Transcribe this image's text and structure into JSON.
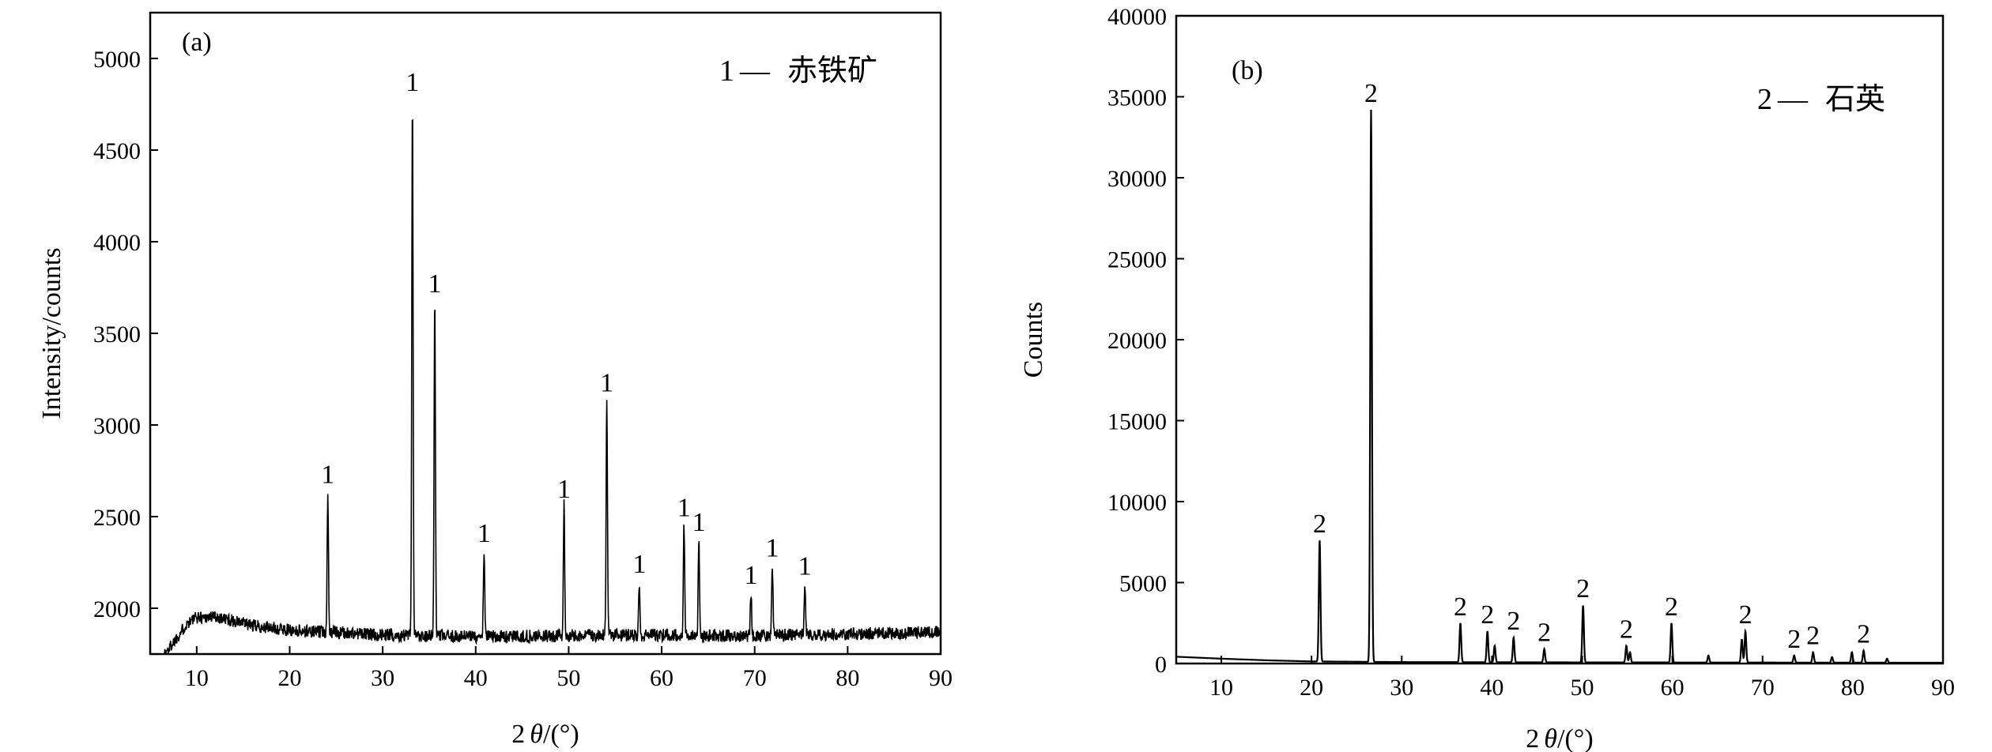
{
  "chart_data": [
    {
      "type": "line",
      "panel_label": "(a)",
      "xlabel_base": "2",
      "xlabel_theta": "θ",
      "xlabel_unit": "/(°)",
      "ylabel": "Intensity/counts",
      "xlim": [
        5,
        90
      ],
      "ylim": [
        1750,
        5250
      ],
      "xticks": [
        10,
        20,
        30,
        40,
        50,
        60,
        70,
        80,
        90
      ],
      "yticks": [
        2000,
        2500,
        3000,
        3500,
        4000,
        4500,
        5000
      ],
      "legend": {
        "marker": "1",
        "dash": "—",
        "name": "赤铁矿",
        "position": "top-right"
      },
      "baseline": {
        "points": [
          [
            6.5,
            1750
          ],
          [
            7,
            1780
          ],
          [
            8,
            1850
          ],
          [
            9,
            1920
          ],
          [
            10,
            1950
          ],
          [
            12,
            1955
          ],
          [
            14,
            1930
          ],
          [
            16,
            1905
          ],
          [
            20,
            1880
          ],
          [
            30,
            1855
          ],
          [
            40,
            1845
          ],
          [
            50,
            1850
          ],
          [
            60,
            1855
          ],
          [
            70,
            1850
          ],
          [
            80,
            1860
          ],
          [
            90,
            1870
          ]
        ],
        "noise": 35
      },
      "series": [
        {
          "peaks": [
            {
              "x": 24.1,
              "y": 2640,
              "label": "1"
            },
            {
              "x": 33.2,
              "y": 4780,
              "label": "1"
            },
            {
              "x": 35.6,
              "y": 3680,
              "label": "1"
            },
            {
              "x": 40.9,
              "y": 2320,
              "label": "1"
            },
            {
              "x": 49.5,
              "y": 2560,
              "label": "1"
            },
            {
              "x": 54.1,
              "y": 3140,
              "label": "1"
            },
            {
              "x": 57.6,
              "y": 2150,
              "label": "1"
            },
            {
              "x": 62.4,
              "y": 2460,
              "label": "1"
            },
            {
              "x": 64.0,
              "y": 2380,
              "label": "1"
            },
            {
              "x": 69.6,
              "y": 2090,
              "label": "1"
            },
            {
              "x": 71.9,
              "y": 2240,
              "label": "1"
            },
            {
              "x": 75.4,
              "y": 2140,
              "label": "1"
            }
          ]
        }
      ]
    },
    {
      "type": "line",
      "panel_label": "(b)",
      "xlabel_base": "2",
      "xlabel_theta": "θ",
      "xlabel_unit": "/(°)",
      "ylabel": "Counts",
      "xlim": [
        5,
        90
      ],
      "ylim": [
        0,
        40000
      ],
      "xticks": [
        10,
        20,
        30,
        40,
        50,
        60,
        70,
        80,
        90
      ],
      "yticks": [
        0,
        5000,
        10000,
        15000,
        20000,
        25000,
        30000,
        35000,
        40000
      ],
      "legend": {
        "marker": "2",
        "dash": "—",
        "name": "石英",
        "position": "top-right"
      },
      "baseline": {
        "points": [
          [
            5,
            420
          ],
          [
            10,
            300
          ],
          [
            15,
            200
          ],
          [
            20,
            130
          ],
          [
            30,
            90
          ],
          [
            50,
            70
          ],
          [
            70,
            60
          ],
          [
            90,
            50
          ]
        ],
        "noise": 0
      },
      "series": [
        {
          "peaks": [
            {
              "x": 20.9,
              "y": 7600,
              "label": "2"
            },
            {
              "x": 26.6,
              "y": 34200,
              "label": "2"
            },
            {
              "x": 36.5,
              "y": 2500,
              "label": "2"
            },
            {
              "x": 39.5,
              "y": 2000,
              "label": "2"
            },
            {
              "x": 40.3,
              "y": 1100,
              "label": ""
            },
            {
              "x": 42.4,
              "y": 1600,
              "label": "2"
            },
            {
              "x": 45.8,
              "y": 900,
              "label": "2"
            },
            {
              "x": 50.1,
              "y": 3600,
              "label": "2"
            },
            {
              "x": 54.9,
              "y": 1100,
              "label": "2"
            },
            {
              "x": 55.3,
              "y": 700,
              "label": ""
            },
            {
              "x": 59.9,
              "y": 2500,
              "label": "2"
            },
            {
              "x": 64.0,
              "y": 500,
              "label": ""
            },
            {
              "x": 67.7,
              "y": 1500,
              "label": ""
            },
            {
              "x": 68.1,
              "y": 2000,
              "label": "2"
            },
            {
              "x": 73.5,
              "y": 500,
              "label": "2"
            },
            {
              "x": 75.6,
              "y": 700,
              "label": "2"
            },
            {
              "x": 77.7,
              "y": 400,
              "label": ""
            },
            {
              "x": 79.9,
              "y": 700,
              "label": ""
            },
            {
              "x": 81.2,
              "y": 800,
              "label": "2"
            },
            {
              "x": 83.8,
              "y": 300,
              "label": ""
            }
          ]
        }
      ]
    }
  ]
}
